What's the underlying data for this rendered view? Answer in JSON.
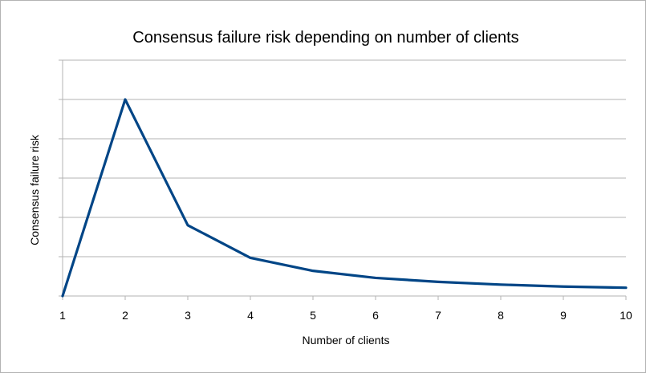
{
  "chart_data": {
    "type": "line",
    "title": "Consensus failure risk depending on number of clients",
    "xlabel": "Number of clients",
    "ylabel": "Consensus failure risk",
    "x": [
      1,
      2,
      3,
      4,
      5,
      6,
      7,
      8,
      9,
      10
    ],
    "xlim": [
      1,
      10
    ],
    "ylim": [
      0,
      6
    ],
    "y_tick_labels_shown": false,
    "grid": true,
    "legend": "none",
    "series": [
      {
        "values": [
          0,
          5,
          1.8,
          0.97,
          0.64,
          0.46,
          0.36,
          0.29,
          0.24,
          0.21
        ],
        "color": "#004586"
      }
    ]
  }
}
